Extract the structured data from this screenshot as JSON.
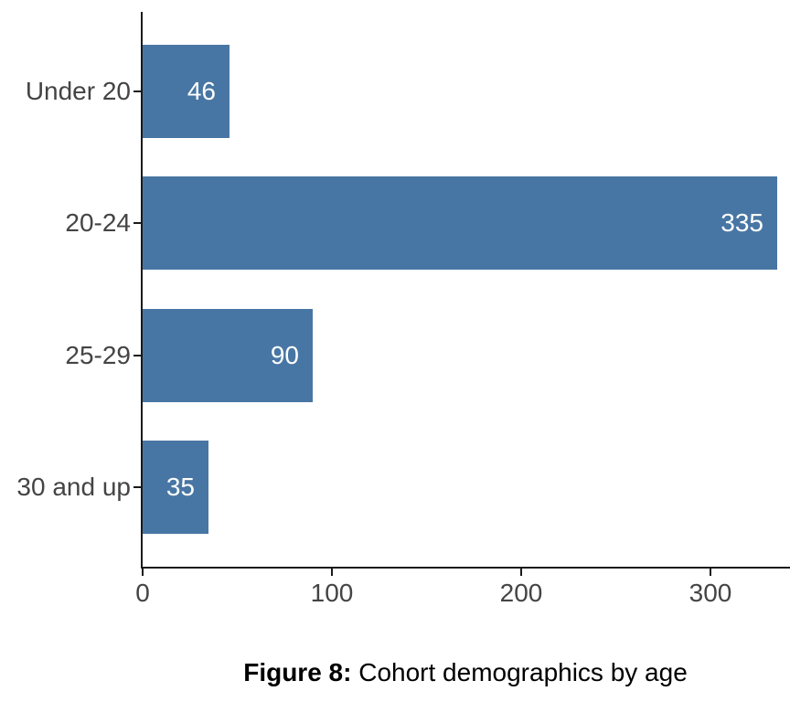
{
  "figure": {
    "caption_prefix": "Figure 8:",
    "caption_text": " Cohort demographics by age"
  },
  "chart_data": {
    "type": "bar",
    "orientation": "horizontal",
    "title": "",
    "xlabel": "",
    "ylabel": "",
    "categories": [
      "Under 20",
      "20-24",
      "25-29",
      "30 and up"
    ],
    "values": [
      46,
      335,
      90,
      35
    ],
    "value_labels": [
      "46",
      "335",
      "90",
      "35"
    ],
    "x_ticks": [
      0,
      100,
      200,
      300
    ],
    "x_tick_labels": [
      "0",
      "100",
      "200",
      "300"
    ],
    "xlim": [
      0,
      342
    ],
    "grid": false,
    "legend": "none",
    "bar_color": "#4876a4",
    "value_label_color": "#ffffff",
    "axis_text_color": "#444444",
    "axis_line_color": "#1a1a1a"
  }
}
